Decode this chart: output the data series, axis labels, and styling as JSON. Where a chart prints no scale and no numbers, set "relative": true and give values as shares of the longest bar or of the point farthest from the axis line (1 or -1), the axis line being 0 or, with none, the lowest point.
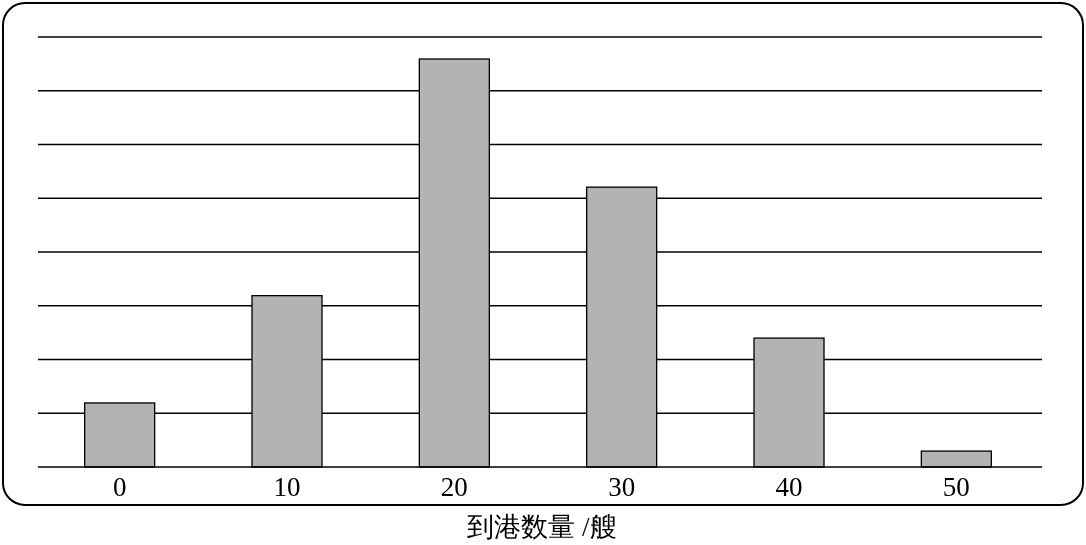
{
  "chart_data": {
    "type": "bar",
    "relative": true,
    "categories": [
      "0",
      "10",
      "20",
      "30",
      "40",
      "50"
    ],
    "values": [
      0.157,
      0.42,
      1,
      0.686,
      0.316,
      0.039
    ],
    "color": "#b3b3b3",
    "xlabel": "到港数量 /艘",
    "grid": "y"
  }
}
